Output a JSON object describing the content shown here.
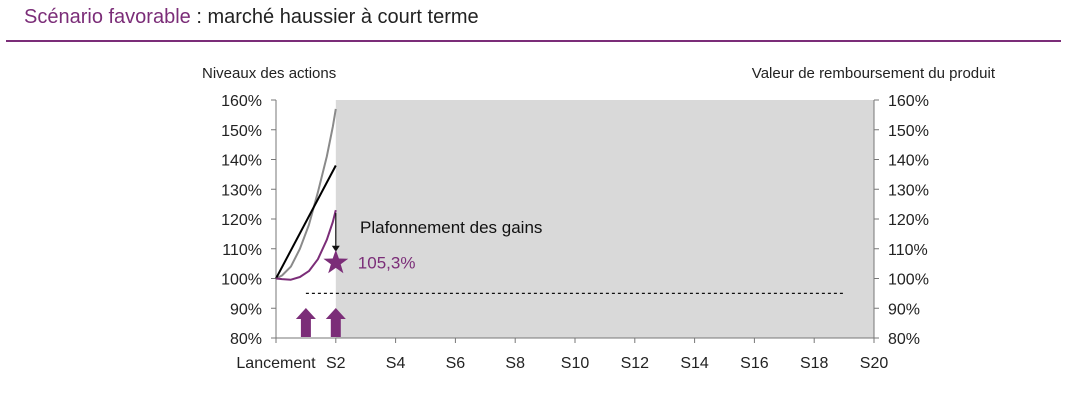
{
  "header": {
    "title_accent": "Scénario favorable",
    "title_rest": " : marché haussier à court terme"
  },
  "chart_data": {
    "type": "line",
    "left_axis_label": "Niveaux des actions",
    "right_axis_label": "Valeur de remboursement du produit",
    "x_ticks": [
      "Lancement",
      "S2",
      "S4",
      "S6",
      "S8",
      "S10",
      "S12",
      "S14",
      "S16",
      "S18",
      "S20"
    ],
    "xlim": [
      0,
      20
    ],
    "ylim": [
      80,
      160
    ],
    "y_ticks": [
      "80%",
      "90%",
      "100%",
      "110%",
      "120%",
      "130%",
      "140%",
      "150%",
      "160%"
    ],
    "shaded_region": {
      "x_start": 2,
      "x_end": 20
    },
    "threshold_line": {
      "y": 95,
      "x_start": 1,
      "x_end": 19,
      "style": "dashed"
    },
    "series": [
      {
        "color": "#8a8a8a",
        "points": [
          [
            0,
            100
          ],
          [
            0.2,
            101
          ],
          [
            0.5,
            104
          ],
          [
            0.8,
            110
          ],
          [
            1.1,
            118
          ],
          [
            1.4,
            129
          ],
          [
            1.7,
            141
          ],
          [
            1.9,
            151
          ],
          [
            2,
            157
          ]
        ]
      },
      {
        "color": "#000000",
        "points": [
          [
            0,
            100
          ],
          [
            2,
            138
          ]
        ]
      },
      {
        "color": "#7b2d78",
        "points": [
          [
            0,
            100
          ],
          [
            0.2,
            99.8
          ],
          [
            0.5,
            99.6
          ],
          [
            0.8,
            100.5
          ],
          [
            1.1,
            102.5
          ],
          [
            1.4,
            106.5
          ],
          [
            1.7,
            113
          ],
          [
            1.9,
            119
          ],
          [
            2,
            123
          ]
        ]
      }
    ],
    "annotation": {
      "text": "Plafonnement des gains",
      "arrow_from_y": 122,
      "arrow_to_y": 109,
      "x": 2
    },
    "result_marker": {
      "x": 2,
      "y": 105.3,
      "label": "105,3%",
      "color": "#7b2d78"
    },
    "observation_arrows": [
      {
        "x": 1
      },
      {
        "x": 2
      }
    ],
    "colors": {
      "accent": "#7b2d78",
      "shade": "#d9d9d9"
    }
  }
}
